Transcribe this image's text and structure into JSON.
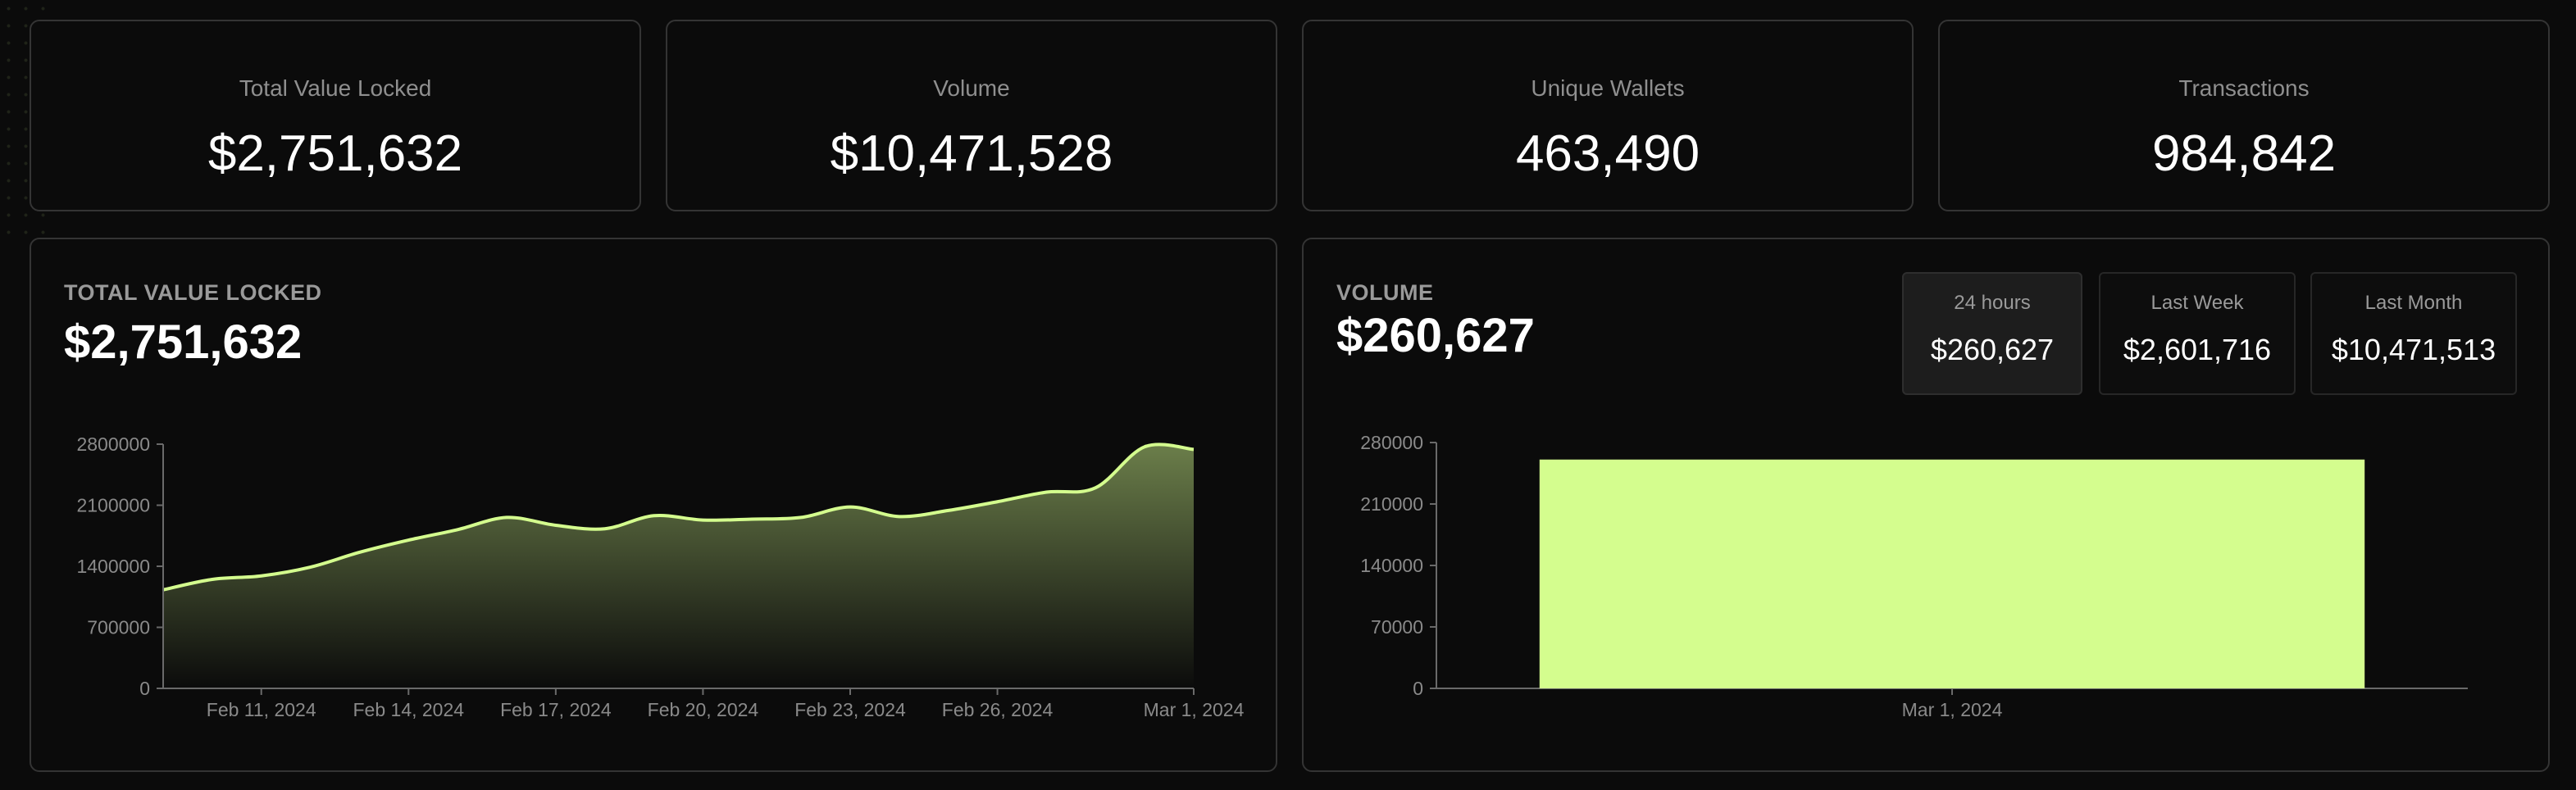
{
  "stats": [
    {
      "label": "Total Value Locked",
      "value": "$2,751,632"
    },
    {
      "label": "Volume",
      "value": "$10,471,528"
    },
    {
      "label": "Unique Wallets",
      "value": "463,490"
    },
    {
      "label": "Transactions",
      "value": "984,842"
    }
  ],
  "tvl_panel": {
    "title": "TOTAL VALUE LOCKED",
    "value": "$2,751,632"
  },
  "volume_panel": {
    "title": "VOLUME",
    "value": "$260,627",
    "periods": [
      {
        "label": "24 hours",
        "value": "$260,627",
        "active": true
      },
      {
        "label": "Last Week",
        "value": "$2,601,716",
        "active": false
      },
      {
        "label": "Last Month",
        "value": "$10,471,513",
        "active": false
      }
    ]
  },
  "colors": {
    "accent": "#d4fd8e",
    "area_top": "#6b7e4a",
    "area_bottom": "#0b0b0b",
    "axis": "#6a6a6a",
    "tick_text": "#8a8a8a"
  },
  "chart_data": [
    {
      "type": "area",
      "title": "TOTAL VALUE LOCKED",
      "xlabel": "",
      "ylabel": "",
      "ylim": [
        0,
        2800000
      ],
      "y_ticks": [
        "0",
        "700000",
        "1400000",
        "2100000",
        "2800000"
      ],
      "x_tick_labels": [
        "Feb 11, 2024",
        "Feb 14, 2024",
        "Feb 17, 2024",
        "Feb 20, 2024",
        "Feb 23, 2024",
        "Feb 26, 2024",
        "Mar 1, 2024"
      ],
      "x_tick_index": [
        2,
        5,
        8,
        11,
        14,
        17,
        21
      ],
      "values": [
        1130000,
        1250000,
        1290000,
        1390000,
        1560000,
        1700000,
        1820000,
        1960000,
        1870000,
        1830000,
        1980000,
        1930000,
        1940000,
        1960000,
        2080000,
        1970000,
        2040000,
        2140000,
        2250000,
        2300000,
        2770000,
        2740000
      ]
    },
    {
      "type": "bar",
      "title": "VOLUME",
      "xlabel": "",
      "ylabel": "",
      "ylim": [
        0,
        280000
      ],
      "y_ticks": [
        "0",
        "70000",
        "140000",
        "210000",
        "280000"
      ],
      "categories": [
        "Mar 1, 2024"
      ],
      "values": [
        260627
      ]
    }
  ]
}
